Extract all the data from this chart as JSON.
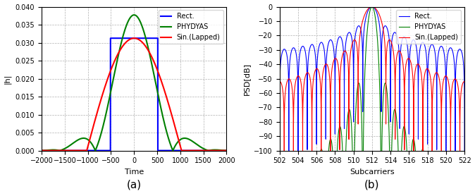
{
  "title_a": "(a)",
  "title_b": "(b)",
  "legend_rect": "Rect.",
  "legend_phydyas": "PHYDYAS",
  "legend_lapped": "Sin.(Lapped)",
  "color_rect": "#0000ff",
  "color_phydyas": "#008000",
  "color_lapped": "#ff0000",
  "ax_a": {
    "xlabel": "Time",
    "ylabel": "|h|",
    "xlim": [
      -2000,
      2000
    ],
    "ylim": [
      0,
      0.04
    ],
    "yticks": [
      0,
      0.005,
      0.01,
      0.015,
      0.02,
      0.025,
      0.03,
      0.035,
      0.04
    ],
    "xticks": [
      -2000,
      -1500,
      -1000,
      -500,
      0,
      500,
      1000,
      1500,
      2000
    ]
  },
  "ax_b": {
    "xlabel": "Subcarriers",
    "ylabel": "PSD[dB]",
    "xlim": [
      502,
      522
    ],
    "ylim": [
      -100,
      0
    ],
    "yticks": [
      -100,
      -90,
      -80,
      -70,
      -60,
      -50,
      -40,
      -30,
      -20,
      -10,
      0
    ],
    "xticks": [
      502,
      504,
      506,
      508,
      510,
      512,
      514,
      516,
      518,
      520,
      522
    ]
  }
}
